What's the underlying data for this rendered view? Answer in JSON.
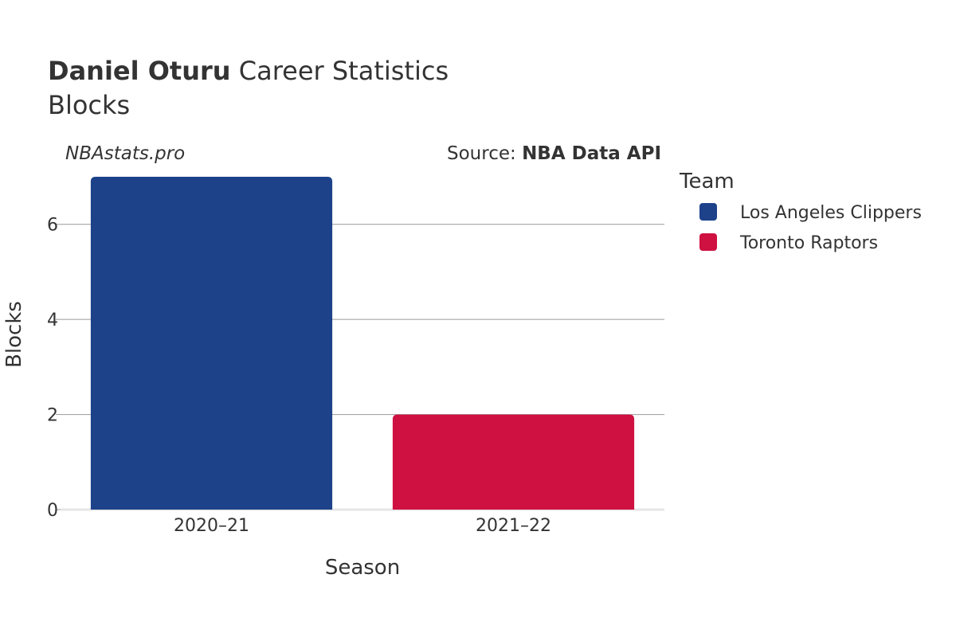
{
  "title": {
    "player": "Daniel Oturu",
    "suffix": " Career Statistics",
    "stat": "Blocks"
  },
  "watermark": "NBAstats.pro",
  "source": {
    "label": "Source: ",
    "name": "NBA Data API"
  },
  "legend": {
    "title": "Team",
    "placement": "right"
  },
  "chart_data": {
    "type": "bar",
    "title": "Daniel Oturu Career Statistics Blocks",
    "xlabel": "Season",
    "ylabel": "Blocks",
    "categories": [
      "2020–21",
      "2021–22"
    ],
    "ylim": [
      0,
      7
    ],
    "yticks": [
      0,
      2,
      4,
      6
    ],
    "grid": true,
    "series": [
      {
        "name": "Los Angeles Clippers",
        "color": "#1d428a",
        "values": [
          7,
          null
        ]
      },
      {
        "name": "Toronto Raptors",
        "color": "#ce1141",
        "values": [
          null,
          2
        ]
      }
    ]
  }
}
